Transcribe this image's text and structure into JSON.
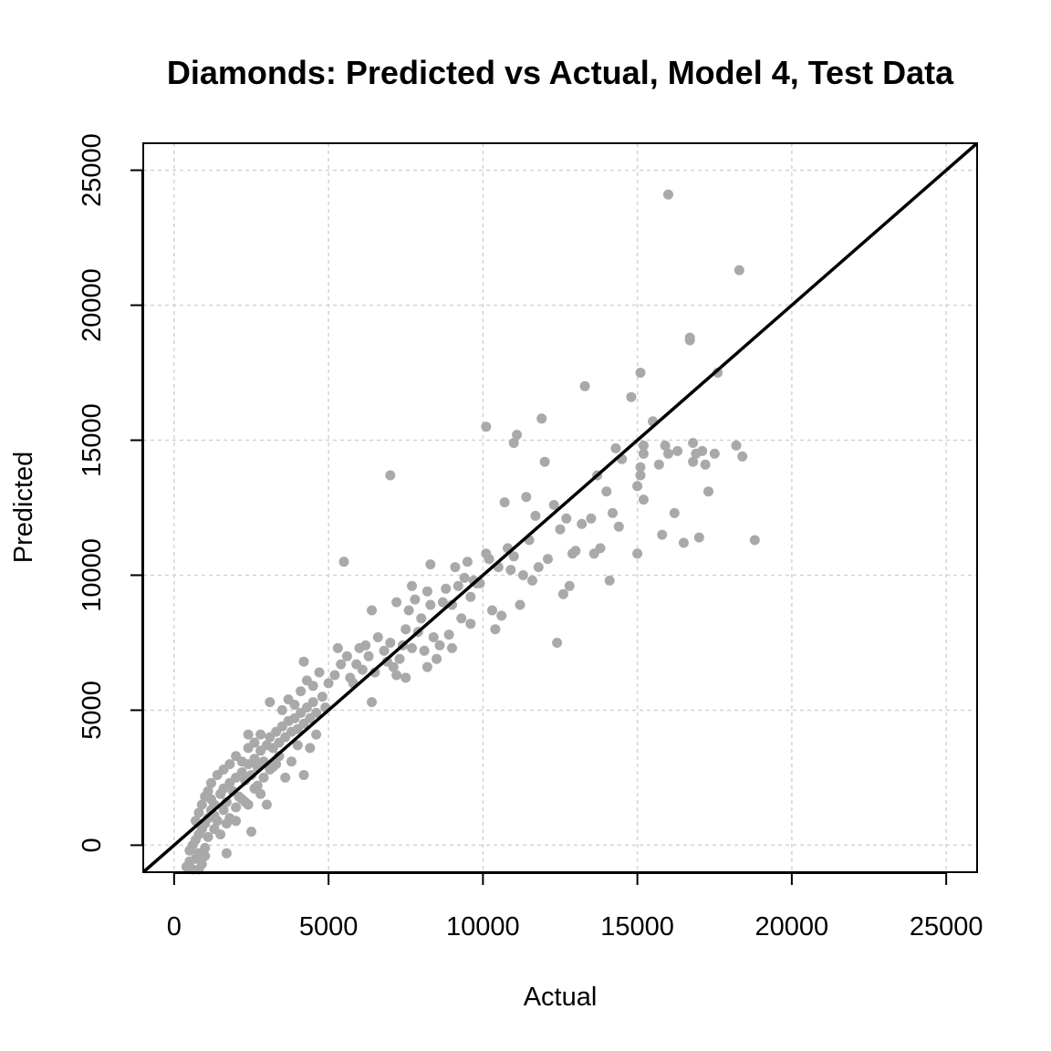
{
  "chart_data": {
    "type": "scatter",
    "title": "Diamonds: Predicted vs Actual, Model 4, Test Data",
    "xlabel": "Actual",
    "ylabel": "Predicted",
    "xlim": [
      -1000,
      26000
    ],
    "ylim": [
      -1000,
      26000
    ],
    "xticks": [
      0,
      5000,
      10000,
      15000,
      20000,
      25000
    ],
    "yticks": [
      0,
      5000,
      10000,
      15000,
      20000,
      25000
    ],
    "grid": true,
    "point_color": "#a9a9a9",
    "reference_line": {
      "slope": 1,
      "intercept": 0,
      "color": "#000000"
    },
    "series": [
      {
        "points": [
          [
            400,
            -800
          ],
          [
            500,
            -600
          ],
          [
            600,
            -900
          ],
          [
            700,
            -500
          ],
          [
            800,
            -300
          ],
          [
            900,
            -700
          ],
          [
            1000,
            -400
          ],
          [
            500,
            -200
          ],
          [
            600,
            0
          ],
          [
            700,
            200
          ],
          [
            800,
            400
          ],
          [
            900,
            600
          ],
          [
            1000,
            800
          ],
          [
            1100,
            1000
          ],
          [
            1200,
            1300
          ],
          [
            1300,
            1500
          ],
          [
            700,
            900
          ],
          [
            800,
            1200
          ],
          [
            900,
            1500
          ],
          [
            1000,
            1800
          ],
          [
            1100,
            2000
          ],
          [
            1200,
            1700
          ],
          [
            1300,
            1100
          ],
          [
            1400,
            900
          ],
          [
            1500,
            1900
          ],
          [
            1600,
            2100
          ],
          [
            1700,
            1600
          ],
          [
            1800,
            2300
          ],
          [
            1900,
            2000
          ],
          [
            2000,
            2500
          ],
          [
            2100,
            1800
          ],
          [
            2200,
            2700
          ],
          [
            2300,
            2400
          ],
          [
            2400,
            3000
          ],
          [
            2500,
            2600
          ],
          [
            2600,
            3200
          ],
          [
            2700,
            2900
          ],
          [
            2800,
            3500
          ],
          [
            2900,
            3100
          ],
          [
            3000,
            3700
          ],
          [
            1600,
            1300
          ],
          [
            1800,
            1000
          ],
          [
            2000,
            1400
          ],
          [
            2200,
            1700
          ],
          [
            2400,
            1500
          ],
          [
            2600,
            2100
          ],
          [
            2800,
            1900
          ],
          [
            3000,
            1500
          ],
          [
            1700,
            800
          ],
          [
            2000,
            900
          ],
          [
            2300,
            1600
          ],
          [
            2500,
            500
          ],
          [
            2700,
            2200
          ],
          [
            2900,
            2500
          ],
          [
            3100,
            2800
          ],
          [
            3300,
            3000
          ],
          [
            1100,
            300
          ],
          [
            1300,
            600
          ],
          [
            1500,
            400
          ],
          [
            1700,
            -300
          ],
          [
            1000,
            -100
          ],
          [
            800,
            -900
          ],
          [
            1200,
            2300
          ],
          [
            1400,
            2600
          ],
          [
            1600,
            2800
          ],
          [
            1800,
            3000
          ],
          [
            2000,
            3300
          ],
          [
            2200,
            3100
          ],
          [
            2400,
            3600
          ],
          [
            2600,
            3800
          ],
          [
            2800,
            4100
          ],
          [
            2400,
            4100
          ],
          [
            3100,
            4000
          ],
          [
            3200,
            3600
          ],
          [
            3300,
            4200
          ],
          [
            3400,
            3800
          ],
          [
            3500,
            4400
          ],
          [
            3600,
            4000
          ],
          [
            3700,
            4600
          ],
          [
            3800,
            4200
          ],
          [
            3900,
            4700
          ],
          [
            4000,
            4300
          ],
          [
            4100,
            4900
          ],
          [
            4200,
            4500
          ],
          [
            4300,
            5100
          ],
          [
            4400,
            4700
          ],
          [
            4500,
            5300
          ],
          [
            4600,
            4900
          ],
          [
            3200,
            2900
          ],
          [
            3400,
            3300
          ],
          [
            3600,
            2500
          ],
          [
            3800,
            3100
          ],
          [
            4000,
            3700
          ],
          [
            4200,
            2600
          ],
          [
            4400,
            3600
          ],
          [
            4600,
            4100
          ],
          [
            3500,
            5000
          ],
          [
            3700,
            5400
          ],
          [
            3900,
            5200
          ],
          [
            4100,
            5700
          ],
          [
            4300,
            6100
          ],
          [
            4500,
            5900
          ],
          [
            4700,
            6400
          ],
          [
            4200,
            6800
          ],
          [
            3100,
            5300
          ],
          [
            4800,
            5500
          ],
          [
            4900,
            5100
          ],
          [
            5000,
            6000
          ],
          [
            5200,
            6300
          ],
          [
            5400,
            6700
          ],
          [
            5300,
            7300
          ],
          [
            5600,
            7000
          ],
          [
            5700,
            6200
          ],
          [
            5900,
            6700
          ],
          [
            6000,
            7300
          ],
          [
            6100,
            6500
          ],
          [
            6300,
            7000
          ],
          [
            6200,
            7400
          ],
          [
            6500,
            6400
          ],
          [
            6400,
            5300
          ],
          [
            6600,
            7700
          ],
          [
            6800,
            7200
          ],
          [
            7000,
            7500
          ],
          [
            7100,
            6600
          ],
          [
            7200,
            6300
          ],
          [
            7300,
            6900
          ],
          [
            7400,
            7400
          ],
          [
            7500,
            8000
          ],
          [
            7600,
            8700
          ],
          [
            7700,
            7300
          ],
          [
            7800,
            9100
          ],
          [
            7900,
            7900
          ],
          [
            8000,
            8400
          ],
          [
            8100,
            7200
          ],
          [
            8200,
            6600
          ],
          [
            8300,
            8900
          ],
          [
            8400,
            7700
          ],
          [
            8500,
            6900
          ],
          [
            8600,
            7400
          ],
          [
            8700,
            9000
          ],
          [
            8800,
            9500
          ],
          [
            8900,
            7800
          ],
          [
            9000,
            8900
          ],
          [
            9100,
            10300
          ],
          [
            9200,
            9600
          ],
          [
            9300,
            8400
          ],
          [
            9400,
            9900
          ],
          [
            9500,
            10500
          ],
          [
            9600,
            8200
          ],
          [
            9700,
            9800
          ],
          [
            9800,
            9700
          ],
          [
            9900,
            9700
          ],
          [
            7200,
            9000
          ],
          [
            7700,
            9600
          ],
          [
            8300,
            10400
          ],
          [
            6400,
            8700
          ],
          [
            5500,
            10500
          ],
          [
            7000,
            13700
          ],
          [
            9000,
            7300
          ],
          [
            7500,
            6200
          ],
          [
            10100,
            10800
          ],
          [
            10100,
            15500
          ],
          [
            10200,
            10600
          ],
          [
            10300,
            8700
          ],
          [
            10400,
            8000
          ],
          [
            10500,
            10300
          ],
          [
            10600,
            8500
          ],
          [
            10700,
            12700
          ],
          [
            10800,
            11000
          ],
          [
            10900,
            10200
          ],
          [
            11000,
            14900
          ],
          [
            11100,
            15200
          ],
          [
            11200,
            8900
          ],
          [
            11300,
            10000
          ],
          [
            11400,
            12900
          ],
          [
            11500,
            11300
          ],
          [
            11600,
            9800
          ],
          [
            11700,
            12200
          ],
          [
            11800,
            10300
          ],
          [
            11900,
            15800
          ],
          [
            12000,
            14200
          ],
          [
            12100,
            10600
          ],
          [
            12300,
            12600
          ],
          [
            12400,
            7500
          ],
          [
            12500,
            11700
          ],
          [
            12600,
            9300
          ],
          [
            12700,
            12100
          ],
          [
            12800,
            9600
          ],
          [
            12900,
            10800
          ],
          [
            13000,
            10900
          ],
          [
            13200,
            11900
          ],
          [
            13300,
            17000
          ],
          [
            13500,
            12100
          ],
          [
            13600,
            10800
          ],
          [
            13700,
            13700
          ],
          [
            13800,
            11000
          ],
          [
            14000,
            13100
          ],
          [
            14100,
            9800
          ],
          [
            14200,
            12300
          ],
          [
            14300,
            14700
          ],
          [
            14400,
            11800
          ],
          [
            14500,
            14300
          ],
          [
            14800,
            16600
          ],
          [
            15000,
            13300
          ],
          [
            15000,
            10800
          ],
          [
            15100,
            17500
          ],
          [
            15100,
            13700
          ],
          [
            15200,
            12800
          ],
          [
            15200,
            14500
          ],
          [
            15200,
            14800
          ],
          [
            15100,
            14000
          ],
          [
            15500,
            15700
          ],
          [
            15700,
            14100
          ],
          [
            15800,
            11500
          ],
          [
            15900,
            14800
          ],
          [
            16000,
            14500
          ],
          [
            16000,
            24100
          ],
          [
            16200,
            12300
          ],
          [
            16300,
            14600
          ],
          [
            16500,
            11200
          ],
          [
            16800,
            14200
          ],
          [
            16800,
            14900
          ],
          [
            16900,
            14500
          ],
          [
            17000,
            11400
          ],
          [
            17100,
            14600
          ],
          [
            17200,
            14100
          ],
          [
            17300,
            13100
          ],
          [
            17500,
            14500
          ],
          [
            17600,
            17500
          ],
          [
            16700,
            18800
          ],
          [
            16700,
            18700
          ],
          [
            18200,
            14800
          ],
          [
            18300,
            21300
          ],
          [
            18400,
            14400
          ],
          [
            18800,
            11300
          ],
          [
            11000,
            10700
          ],
          [
            9600,
            9200
          ],
          [
            8200,
            9400
          ],
          [
            6900,
            6800
          ],
          [
            5800,
            6000
          ]
        ]
      }
    ]
  }
}
